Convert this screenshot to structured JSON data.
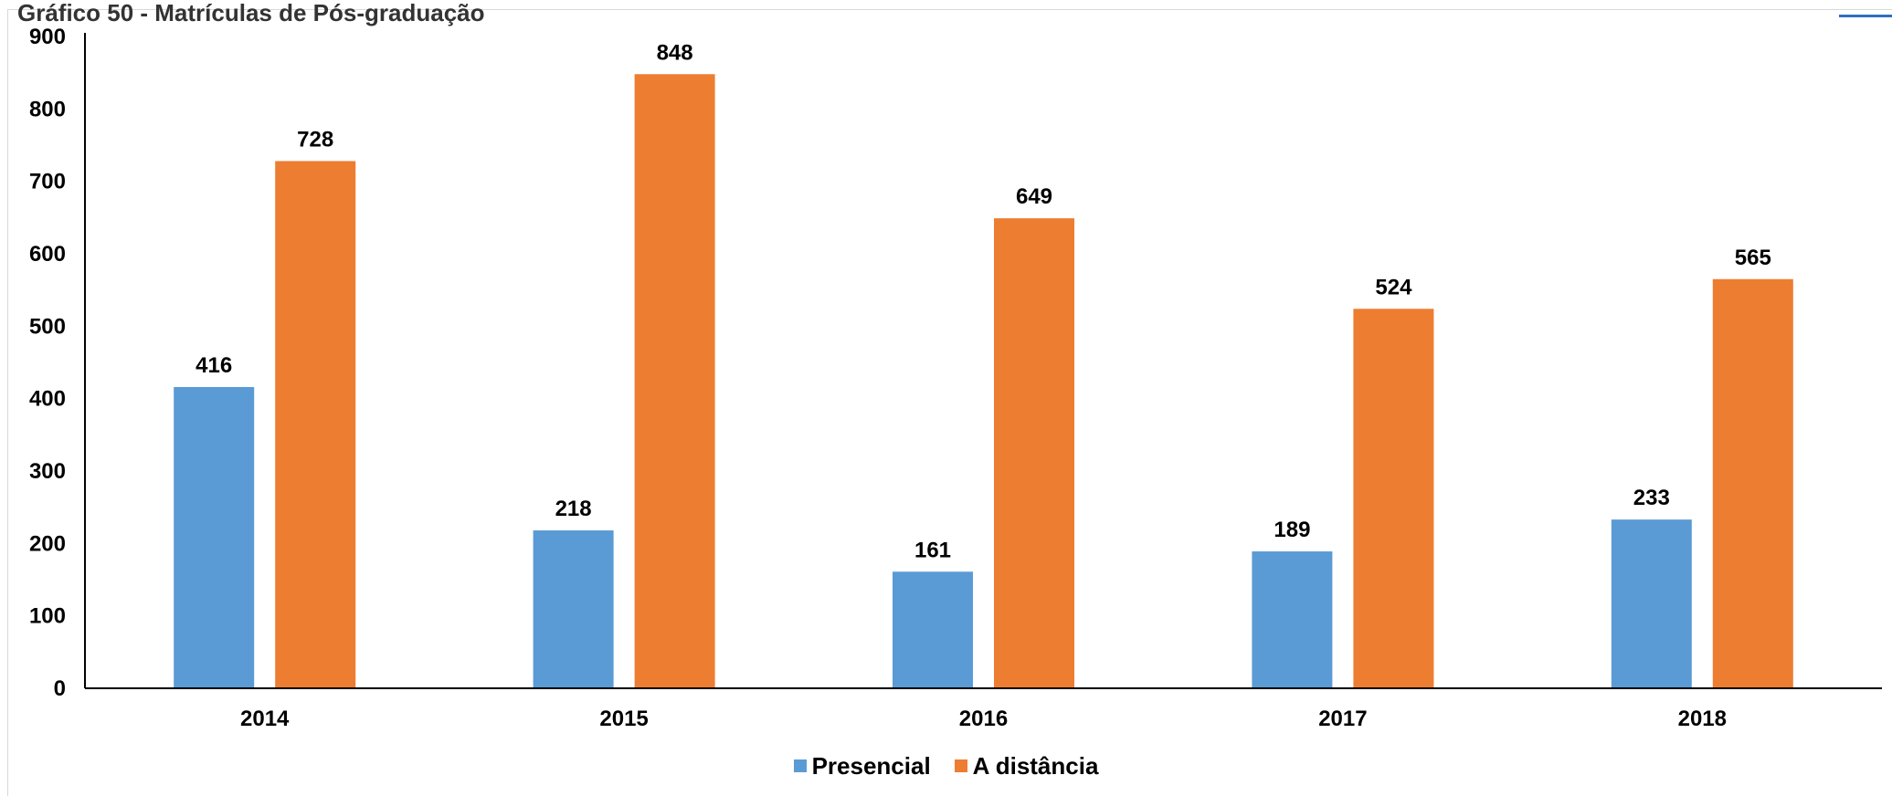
{
  "page": {
    "title": "Gráfico 50 - Matrículas de Pós-graduação"
  },
  "colors": {
    "series1": "#5b9bd5",
    "series2": "#ed7d31",
    "axis": "#000000"
  },
  "chart_data": {
    "type": "bar",
    "categories": [
      "2014",
      "2015",
      "2016",
      "2017",
      "2018"
    ],
    "series": [
      {
        "name": "Presencial",
        "values": [
          416,
          218,
          161,
          189,
          233
        ]
      },
      {
        "name": "A distância",
        "values": [
          728,
          848,
          649,
          524,
          565
        ]
      }
    ],
    "ylim": [
      0,
      900
    ],
    "yticks": [
      0,
      100,
      200,
      300,
      400,
      500,
      600,
      700,
      800,
      900
    ],
    "legend_position": "bottom",
    "grid": false,
    "data_labels": true
  }
}
